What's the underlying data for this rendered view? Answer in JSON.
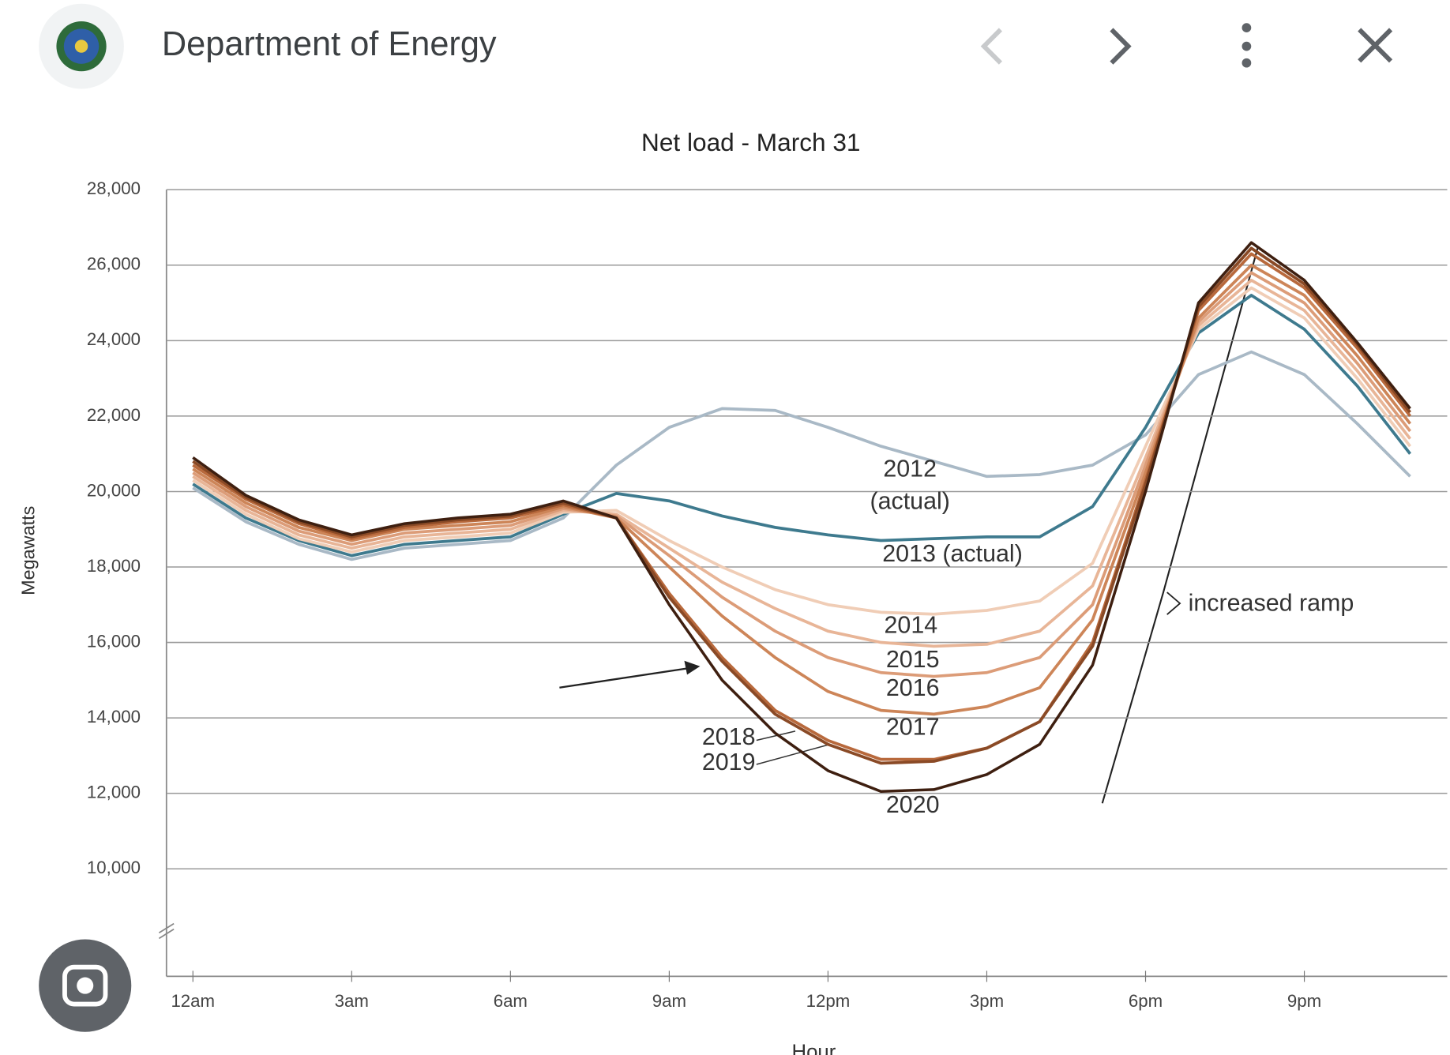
{
  "header": {
    "title": "Department of Energy"
  },
  "chart_data": {
    "type": "line",
    "title": "Net load - March 31",
    "ylabel": "Megawatts",
    "xlabel": "Hour",
    "x": [
      0,
      1,
      2,
      3,
      4,
      5,
      6,
      7,
      8,
      9,
      10,
      11,
      12,
      13,
      14,
      15,
      16,
      17,
      18,
      19,
      20,
      21,
      22,
      23
    ],
    "xlim": [
      -0.5,
      23.7
    ],
    "xticks": [
      {
        "value": 0,
        "label": "12am"
      },
      {
        "value": 3,
        "label": "3am"
      },
      {
        "value": 6,
        "label": "6am"
      },
      {
        "value": 9,
        "label": "9am"
      },
      {
        "value": 12,
        "label": "12pm"
      },
      {
        "value": 15,
        "label": "3pm"
      },
      {
        "value": 18,
        "label": "6pm"
      },
      {
        "value": 21,
        "label": "9pm"
      }
    ],
    "ylim": [
      7150,
      28000
    ],
    "yticks": [
      {
        "value": 10000,
        "label": "10,000"
      },
      {
        "value": 12000,
        "label": "12,000"
      },
      {
        "value": 14000,
        "label": "14,000"
      },
      {
        "value": 16000,
        "label": "16,000"
      },
      {
        "value": 18000,
        "label": "18,000"
      },
      {
        "value": 20000,
        "label": "20,000"
      },
      {
        "value": 22000,
        "label": "22,000"
      },
      {
        "value": 24000,
        "label": "24,000"
      },
      {
        "value": 26000,
        "label": "26,000"
      },
      {
        "value": 28000,
        "label": "28,000"
      }
    ],
    "grid": true,
    "series": [
      {
        "name": "2012",
        "color": "#a9b9c6",
        "values": [
          20100,
          19200,
          18600,
          18200,
          18500,
          18600,
          18700,
          19300,
          20700,
          21700,
          22200,
          22150,
          21700,
          21200,
          20800,
          20400,
          20450,
          20700,
          21500,
          23100,
          23700,
          23100,
          21800,
          20400
        ]
      },
      {
        "name": "2013",
        "color": "#3e7a8e",
        "values": [
          20200,
          19300,
          18700,
          18300,
          18600,
          18700,
          18800,
          19400,
          19950,
          19750,
          19350,
          19050,
          18850,
          18700,
          18750,
          18800,
          18800,
          19600,
          21700,
          24200,
          25200,
          24300,
          22800,
          21000
        ]
      },
      {
        "name": "2014",
        "color": "#f0cdb6",
        "values": [
          20300,
          19400,
          18750,
          18400,
          18700,
          18800,
          18900,
          19450,
          19500,
          18700,
          18000,
          17400,
          17000,
          16800,
          16750,
          16850,
          17100,
          18100,
          21200,
          24300,
          25400,
          24600,
          23000,
          21200
        ]
      },
      {
        "name": "2015",
        "color": "#e8b597",
        "values": [
          20400,
          19500,
          18850,
          18500,
          18800,
          18900,
          19000,
          19500,
          19400,
          18500,
          17600,
          16900,
          16300,
          16000,
          15900,
          15950,
          16300,
          17500,
          20900,
          24400,
          25600,
          24800,
          23200,
          21400
        ]
      },
      {
        "name": "2016",
        "color": "#dc9c78",
        "values": [
          20500,
          19600,
          18950,
          18600,
          18900,
          19000,
          19100,
          19550,
          19350,
          18300,
          17200,
          16300,
          15600,
          15200,
          15100,
          15200,
          15600,
          17000,
          20700,
          24500,
          25800,
          25000,
          23400,
          21600
        ]
      },
      {
        "name": "2017",
        "color": "#cd8558",
        "values": [
          20600,
          19700,
          19050,
          18700,
          19000,
          19100,
          19200,
          19600,
          19300,
          18000,
          16700,
          15600,
          14700,
          14200,
          14100,
          14300,
          14800,
          16600,
          20500,
          24600,
          26000,
          25200,
          23600,
          21800
        ]
      },
      {
        "name": "2018",
        "color": "#b8693c",
        "values": [
          20700,
          19800,
          19150,
          18750,
          19050,
          19200,
          19300,
          19650,
          19300,
          17300,
          15600,
          14200,
          13400,
          12900,
          12900,
          13200,
          13900,
          16000,
          20300,
          24800,
          26300,
          25400,
          23800,
          22000
        ]
      },
      {
        "name": "2019",
        "color": "#8a4a26",
        "values": [
          20800,
          19850,
          19200,
          18800,
          19100,
          19250,
          19350,
          19700,
          19300,
          17200,
          15500,
          14100,
          13300,
          12800,
          12850,
          13200,
          13900,
          15900,
          20200,
          24900,
          26450,
          25500,
          23900,
          22100
        ]
      },
      {
        "name": "2020",
        "color": "#3e1f10",
        "values": [
          20900,
          19900,
          19250,
          18850,
          19150,
          19300,
          19400,
          19750,
          19300,
          17000,
          15000,
          13600,
          12600,
          12050,
          12100,
          12500,
          13300,
          15400,
          20000,
          25000,
          26600,
          25600,
          23950,
          22200
        ]
      }
    ],
    "annotations": [
      "2012",
      "(actual)",
      "2013 (actual)",
      "2014",
      "2015",
      "2016",
      "2017",
      "2018",
      "2019",
      "2020",
      "increased ramp"
    ]
  }
}
